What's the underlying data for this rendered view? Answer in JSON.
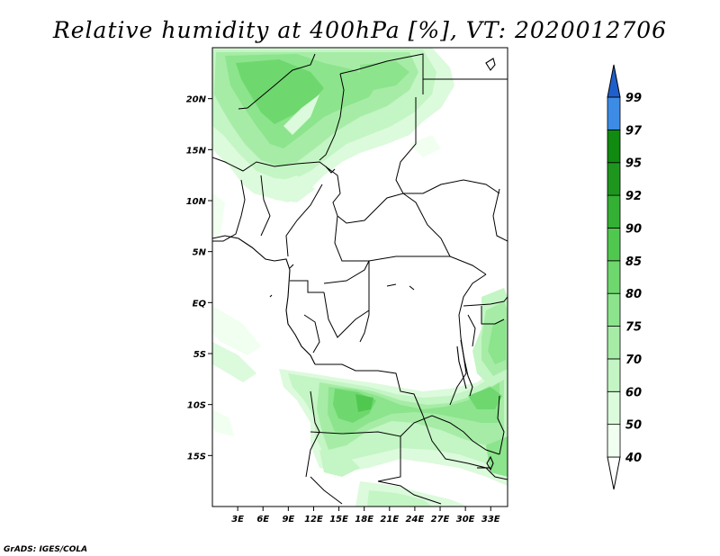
{
  "title": "Relative humidity at 400hPa [%], VT: 2020012706",
  "credit": "GrADS: IGES/COLA",
  "map": {
    "lon_range": [
      0,
      35
    ],
    "lat_range": [
      -20,
      25
    ],
    "lon_ticks": [
      {
        "value": 3,
        "label": "3E"
      },
      {
        "value": 6,
        "label": "6E"
      },
      {
        "value": 9,
        "label": "9E"
      },
      {
        "value": 12,
        "label": "12E"
      },
      {
        "value": 15,
        "label": "15E"
      },
      {
        "value": 18,
        "label": "18E"
      },
      {
        "value": 21,
        "label": "21E"
      },
      {
        "value": 24,
        "label": "24E"
      },
      {
        "value": 27,
        "label": "27E"
      },
      {
        "value": 30,
        "label": "30E"
      },
      {
        "value": 33,
        "label": "33E"
      }
    ],
    "lat_ticks": [
      {
        "value": 20,
        "label": "20N"
      },
      {
        "value": 15,
        "label": "15N"
      },
      {
        "value": 10,
        "label": "10N"
      },
      {
        "value": 5,
        "label": "5N"
      },
      {
        "value": 0,
        "label": "EQ"
      },
      {
        "value": -5,
        "label": "5S"
      },
      {
        "value": -10,
        "label": "10S"
      },
      {
        "value": -15,
        "label": "15S"
      }
    ]
  },
  "colorbar": {
    "levels": [
      {
        "label": "40",
        "color": "#f0fff0"
      },
      {
        "label": "50",
        "color": "#dcfadc"
      },
      {
        "label": "60",
        "color": "#c4f5c4"
      },
      {
        "label": "70",
        "color": "#a6eca6"
      },
      {
        "label": "75",
        "color": "#8ce48c"
      },
      {
        "label": "80",
        "color": "#6ed86e"
      },
      {
        "label": "85",
        "color": "#50c850"
      },
      {
        "label": "90",
        "color": "#34b034"
      },
      {
        "label": "92",
        "color": "#1e961e"
      },
      {
        "label": "95",
        "color": "#108a10"
      },
      {
        "label": "97",
        "color": "#3c8ce6"
      },
      {
        "label": "99",
        "color": "#2164d2"
      }
    ],
    "top_color": "#1f5fcc",
    "bottom_color": "#ffffff"
  }
}
